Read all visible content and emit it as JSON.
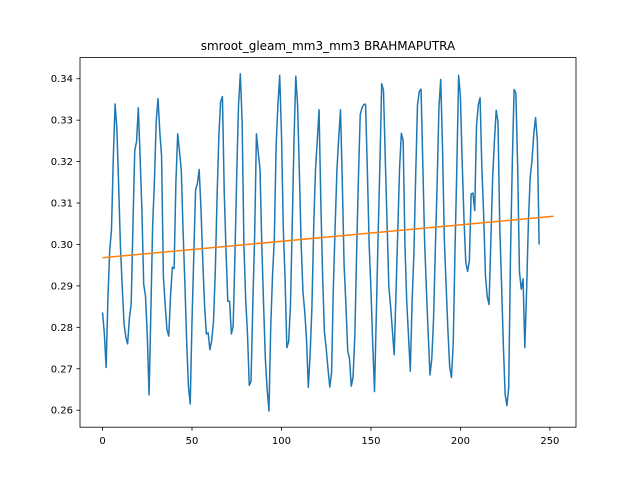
{
  "chart_data": {
    "type": "line",
    "title": "smroot_gleam_mm3_mm3 BRAHMAPUTRA",
    "xlabel": "",
    "ylabel": "",
    "xlim": [
      -12.6,
      264.6
    ],
    "ylim": [
      0.2559,
      0.3451
    ],
    "xticks": [
      0,
      50,
      100,
      150,
      200,
      250
    ],
    "yticks": [
      0.26,
      0.27,
      0.28,
      0.29,
      0.3,
      0.31,
      0.32,
      0.33,
      0.34
    ],
    "ytick_labels": [
      "0.26",
      "0.27",
      "0.28",
      "0.29",
      "0.30",
      "0.31",
      "0.32",
      "0.33",
      "0.34"
    ],
    "grid": false,
    "series": [
      {
        "color": "#1f77b4",
        "x_start": 0,
        "x_step": 1,
        "values": [
          0.2836,
          0.2786,
          0.2703,
          0.287,
          0.2985,
          0.3036,
          0.3207,
          0.3339,
          0.328,
          0.3143,
          0.2995,
          0.2898,
          0.281,
          0.2776,
          0.276,
          0.2822,
          0.2855,
          0.3047,
          0.3227,
          0.3248,
          0.333,
          0.321,
          0.3082,
          0.2904,
          0.2876,
          0.2781,
          0.2637,
          0.2837,
          0.3046,
          0.3153,
          0.3298,
          0.3352,
          0.3272,
          0.3212,
          0.2923,
          0.2854,
          0.2794,
          0.2779,
          0.2876,
          0.2945,
          0.2942,
          0.3151,
          0.3267,
          0.3225,
          0.3179,
          0.3034,
          0.2908,
          0.2768,
          0.2658,
          0.2615,
          0.2816,
          0.2975,
          0.3132,
          0.3147,
          0.3181,
          0.3087,
          0.2961,
          0.2855,
          0.2784,
          0.2787,
          0.2746,
          0.2768,
          0.2814,
          0.2932,
          0.3114,
          0.3262,
          0.3345,
          0.3357,
          0.3128,
          0.2985,
          0.2863,
          0.2863,
          0.2784,
          0.2803,
          0.2975,
          0.317,
          0.3336,
          0.3412,
          0.3299,
          0.3,
          0.2866,
          0.2785,
          0.266,
          0.267,
          0.286,
          0.302,
          0.3267,
          0.3223,
          0.3181,
          0.2999,
          0.2855,
          0.2723,
          0.265,
          0.2598,
          0.2803,
          0.2925,
          0.3013,
          0.3238,
          0.3336,
          0.3408,
          0.3267,
          0.3041,
          0.2919,
          0.2751,
          0.2765,
          0.285,
          0.3045,
          0.3251,
          0.3406,
          0.3337,
          0.3175,
          0.3,
          0.2886,
          0.2838,
          0.277,
          0.2655,
          0.2734,
          0.2847,
          0.304,
          0.3179,
          0.325,
          0.3325,
          0.31,
          0.2923,
          0.2788,
          0.2749,
          0.27,
          0.2656,
          0.2691,
          0.2897,
          0.3044,
          0.3182,
          0.3258,
          0.3325,
          0.315,
          0.295,
          0.2857,
          0.2744,
          0.2725,
          0.2658,
          0.268,
          0.278,
          0.2982,
          0.316,
          0.3313,
          0.333,
          0.3338,
          0.3338,
          0.3178,
          0.3,
          0.2892,
          0.276,
          0.2645,
          0.283,
          0.3021,
          0.3191,
          0.3388,
          0.3372,
          0.3208,
          0.3054,
          0.2898,
          0.285,
          0.2791,
          0.2734,
          0.2883,
          0.3032,
          0.3184,
          0.3268,
          0.3251,
          0.3,
          0.2862,
          0.2778,
          0.2694,
          0.2862,
          0.2978,
          0.3165,
          0.3336,
          0.3369,
          0.3375,
          0.3193,
          0.3006,
          0.2891,
          0.2784,
          0.2685,
          0.2724,
          0.2821,
          0.2992,
          0.3147,
          0.3331,
          0.3398,
          0.3235,
          0.3014,
          0.2902,
          0.2795,
          0.2705,
          0.2679,
          0.2762,
          0.2992,
          0.3186,
          0.3408,
          0.3357,
          0.3197,
          0.3061,
          0.2957,
          0.2935,
          0.296,
          0.3122,
          0.3124,
          0.3082,
          0.3286,
          0.3337,
          0.3354,
          0.3182,
          0.3071,
          0.2924,
          0.2874,
          0.2855,
          0.3008,
          0.3159,
          0.3249,
          0.3324,
          0.3296,
          0.3041,
          0.2904,
          0.2757,
          0.2638,
          0.2611,
          0.2655,
          0.2978,
          0.3197,
          0.3374,
          0.3365,
          0.3187,
          0.2934,
          0.2892,
          0.2917,
          0.2751,
          0.2889,
          0.3054,
          0.3162,
          0.3202,
          0.3267,
          0.3306,
          0.3251,
          0.3
        ]
      },
      {
        "color": "#ff7f0e",
        "x": [
          0,
          252
        ],
        "values": [
          0.2968,
          0.3068
        ]
      }
    ]
  }
}
